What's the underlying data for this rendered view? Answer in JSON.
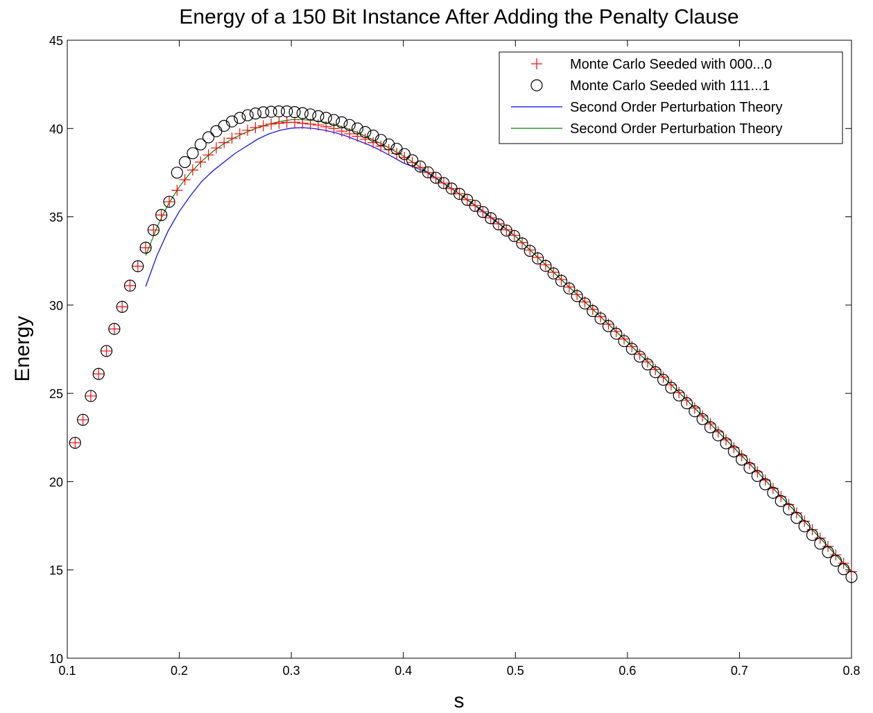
{
  "chart_data": {
    "type": "scatter",
    "title": "Energy of a 150 Bit Instance After Adding the Penalty Clause",
    "xlabel": "s",
    "ylabel": "Energy",
    "xlim": [
      0.1,
      0.8
    ],
    "ylim": [
      10,
      45
    ],
    "xticks": [
      0.1,
      0.2,
      0.3,
      0.4,
      0.5,
      0.6,
      0.7,
      0.8
    ],
    "yticks": [
      10,
      15,
      20,
      25,
      30,
      35,
      40,
      45
    ],
    "legend": "upper right",
    "series": [
      {
        "name": "Monte Carlo Seeded with 000...0",
        "color": "#ff0000",
        "marker": "+",
        "x": [
          0.107,
          0.114,
          0.121,
          0.128,
          0.135,
          0.142,
          0.149,
          0.156,
          0.163,
          0.17,
          0.177,
          0.184,
          0.191,
          0.198,
          0.205,
          0.212,
          0.219,
          0.226,
          0.233,
          0.24,
          0.247,
          0.254,
          0.261,
          0.268,
          0.275,
          0.282,
          0.289,
          0.296,
          0.303,
          0.31,
          0.317,
          0.324,
          0.331,
          0.338,
          0.345,
          0.352,
          0.359,
          0.366,
          0.373,
          0.38,
          0.387,
          0.394,
          0.401,
          0.408,
          0.415,
          0.422,
          0.429,
          0.436,
          0.443,
          0.45,
          0.457,
          0.464,
          0.471,
          0.478,
          0.485,
          0.492,
          0.499,
          0.506,
          0.513,
          0.52,
          0.527,
          0.534,
          0.541,
          0.548,
          0.555,
          0.562,
          0.569,
          0.576,
          0.583,
          0.59,
          0.597,
          0.604,
          0.611,
          0.618,
          0.625,
          0.632,
          0.639,
          0.646,
          0.653,
          0.66,
          0.667,
          0.674,
          0.681,
          0.688,
          0.695,
          0.702,
          0.709,
          0.716,
          0.723,
          0.73,
          0.737,
          0.744,
          0.751,
          0.758,
          0.765,
          0.772,
          0.779,
          0.786,
          0.793,
          0.8
        ],
        "values": [
          22.2,
          23.5,
          24.85,
          26.1,
          27.4,
          28.65,
          29.9,
          31.1,
          32.2,
          33.25,
          34.25,
          35.1,
          35.85,
          36.5,
          37.1,
          37.65,
          38.1,
          38.5,
          38.9,
          39.2,
          39.45,
          39.7,
          39.9,
          40.05,
          40.15,
          40.25,
          40.3,
          40.35,
          40.35,
          40.3,
          40.25,
          40.2,
          40.1,
          40.0,
          39.85,
          39.7,
          39.56,
          39.4,
          39.2,
          39.0,
          38.8,
          38.58,
          38.36,
          38.08,
          37.8,
          37.51,
          37.21,
          36.91,
          36.6,
          36.3,
          35.97,
          35.63,
          35.29,
          34.94,
          34.6,
          34.26,
          33.95,
          33.54,
          33.12,
          32.7,
          32.28,
          31.86,
          31.44,
          31.02,
          30.6,
          30.18,
          29.76,
          29.34,
          28.92,
          28.5,
          28.08,
          27.65,
          27.22,
          26.78,
          26.35,
          25.92,
          25.48,
          25.05,
          24.61,
          24.17,
          23.72,
          23.27,
          22.82,
          22.37,
          21.92,
          21.47,
          21.01,
          20.55,
          20.09,
          19.62,
          19.16,
          18.7,
          18.23,
          17.76,
          17.28,
          16.8,
          16.33,
          15.85,
          15.38,
          14.9
        ]
      },
      {
        "name": "Monte Carlo Seeded with 111...1",
        "color": "#000000",
        "marker": "o",
        "x": [
          0.107,
          0.114,
          0.121,
          0.128,
          0.135,
          0.142,
          0.149,
          0.156,
          0.163,
          0.17,
          0.177,
          0.184,
          0.191,
          0.198,
          0.205,
          0.212,
          0.219,
          0.226,
          0.233,
          0.24,
          0.247,
          0.254,
          0.261,
          0.268,
          0.275,
          0.282,
          0.289,
          0.296,
          0.303,
          0.31,
          0.317,
          0.324,
          0.331,
          0.338,
          0.345,
          0.352,
          0.359,
          0.366,
          0.373,
          0.38,
          0.387,
          0.394,
          0.401,
          0.408,
          0.415,
          0.422,
          0.429,
          0.436,
          0.443,
          0.45,
          0.457,
          0.464,
          0.471,
          0.478,
          0.485,
          0.492,
          0.499,
          0.506,
          0.513,
          0.52,
          0.527,
          0.534,
          0.541,
          0.548,
          0.555,
          0.562,
          0.569,
          0.576,
          0.583,
          0.59,
          0.597,
          0.604,
          0.611,
          0.618,
          0.625,
          0.632,
          0.639,
          0.646,
          0.653,
          0.66,
          0.667,
          0.674,
          0.681,
          0.688,
          0.695,
          0.702,
          0.709,
          0.716,
          0.723,
          0.73,
          0.737,
          0.744,
          0.751,
          0.758,
          0.765,
          0.772,
          0.779,
          0.786,
          0.793,
          0.8
        ],
        "values": [
          22.2,
          23.5,
          24.85,
          26.1,
          27.4,
          28.65,
          29.9,
          31.1,
          32.2,
          33.25,
          34.25,
          35.1,
          35.85,
          37.5,
          38.1,
          38.6,
          39.1,
          39.5,
          39.85,
          40.15,
          40.4,
          40.6,
          40.75,
          40.85,
          40.92,
          40.95,
          40.97,
          40.97,
          40.93,
          40.87,
          40.8,
          40.7,
          40.6,
          40.48,
          40.35,
          40.2,
          40.0,
          39.8,
          39.6,
          39.35,
          39.1,
          38.85,
          38.55,
          38.2,
          37.85,
          37.52,
          37.21,
          36.91,
          36.6,
          36.3,
          35.96,
          35.62,
          35.27,
          34.92,
          34.57,
          34.22,
          33.91,
          33.49,
          33.07,
          32.64,
          32.22,
          31.79,
          31.37,
          30.94,
          30.51,
          30.09,
          29.66,
          29.24,
          28.81,
          28.38,
          27.96,
          27.52,
          27.08,
          26.64,
          26.2,
          25.77,
          25.32,
          24.88,
          24.44,
          23.99,
          23.54,
          23.08,
          22.62,
          22.17,
          21.71,
          21.25,
          20.78,
          20.32,
          19.85,
          19.37,
          18.9,
          18.43,
          17.95,
          17.47,
          16.98,
          16.49,
          16.01,
          15.52,
          15.04,
          14.6
        ]
      },
      {
        "name": "Second Order Perturbation Theory",
        "color": "#0000ff",
        "marker": "line",
        "x": [
          0.17,
          0.18,
          0.19,
          0.2,
          0.21,
          0.22,
          0.23,
          0.24,
          0.25,
          0.26,
          0.27,
          0.28,
          0.29,
          0.3,
          0.31,
          0.32,
          0.33,
          0.34,
          0.35,
          0.36,
          0.37,
          0.38,
          0.39,
          0.4,
          0.42,
          0.45,
          0.475,
          0.5,
          0.55,
          0.6,
          0.65,
          0.7,
          0.75,
          0.8
        ],
        "values": [
          31.05,
          32.8,
          34.2,
          35.3,
          36.2,
          37.0,
          37.6,
          38.1,
          38.6,
          39.0,
          39.4,
          39.7,
          39.9,
          40.02,
          40.05,
          40.0,
          39.9,
          39.75,
          39.55,
          39.3,
          39.05,
          38.75,
          38.4,
          38.05,
          37.55,
          36.3,
          35.1,
          33.9,
          30.9,
          27.9,
          24.8,
          21.6,
          18.3,
          14.9
        ]
      },
      {
        "name": "Second Order Perturbation Theory",
        "color": "#008000",
        "marker": "line",
        "x": [
          0.17,
          0.18,
          0.19,
          0.2,
          0.21,
          0.22,
          0.23,
          0.24,
          0.25,
          0.26,
          0.27,
          0.28,
          0.29,
          0.3,
          0.31,
          0.32,
          0.33,
          0.34,
          0.35,
          0.36,
          0.37,
          0.38,
          0.39,
          0.4,
          0.42,
          0.45,
          0.475,
          0.5,
          0.55,
          0.6,
          0.65,
          0.7,
          0.75,
          0.8
        ],
        "values": [
          32.8,
          34.4,
          35.7,
          36.7,
          37.5,
          38.15,
          38.7,
          39.15,
          39.5,
          39.8,
          40.05,
          40.25,
          40.4,
          40.5,
          40.5,
          40.45,
          40.35,
          40.2,
          40.0,
          39.75,
          39.45,
          39.15,
          38.8,
          38.45,
          37.6,
          36.3,
          35.15,
          33.9,
          30.9,
          27.9,
          24.8,
          21.6,
          18.3,
          14.9
        ]
      }
    ]
  }
}
